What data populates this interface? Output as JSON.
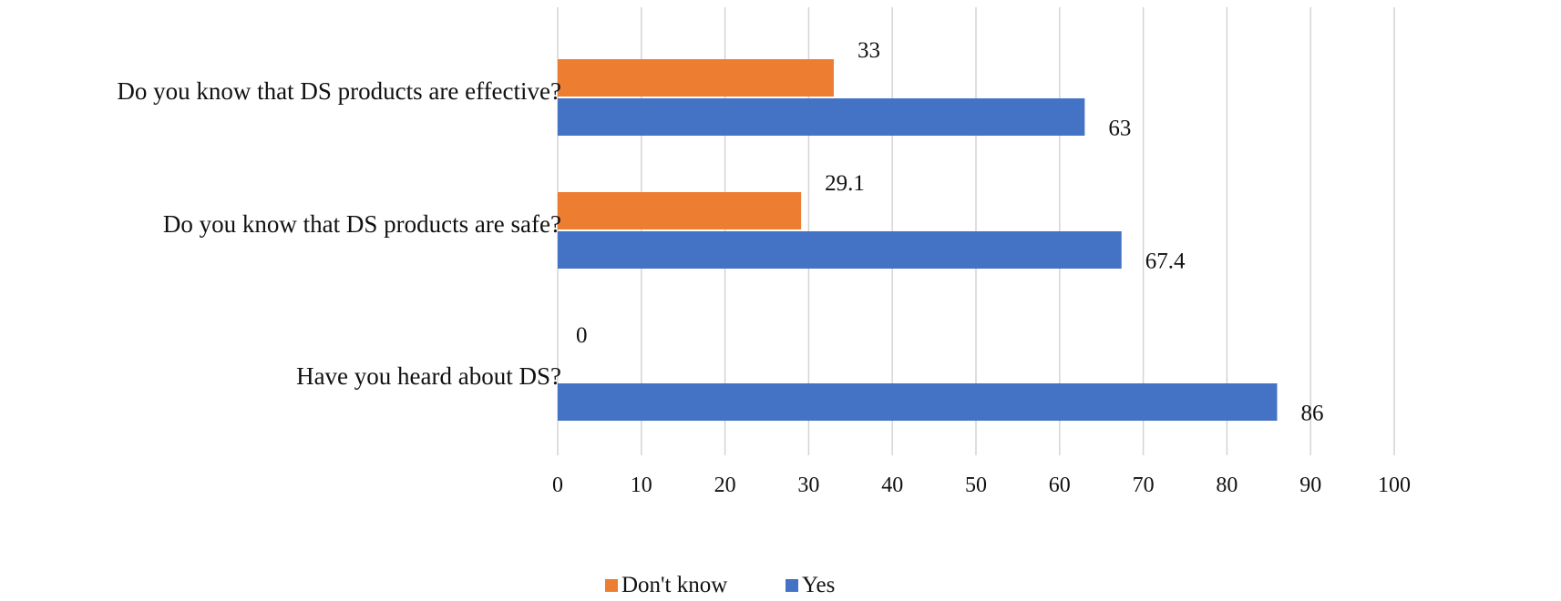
{
  "chart_data": {
    "type": "bar",
    "orientation": "horizontal",
    "categories": [
      "Do you know that DS products are effective?",
      "Do you know that DS products are safe?",
      "Have you heard about DS?"
    ],
    "series": [
      {
        "name": "Don't know",
        "color": "#ED7D31",
        "values": [
          33,
          29.1,
          0
        ]
      },
      {
        "name": "Yes",
        "color": "#4472C4",
        "values": [
          63,
          67.4,
          86
        ]
      }
    ],
    "data_labels": [
      [
        "33",
        "29.1",
        "0"
      ],
      [
        "63",
        "67.4",
        "86"
      ]
    ],
    "xlim": [
      0,
      100
    ],
    "xticks": [
      "0",
      "10",
      "20",
      "30",
      "40",
      "50",
      "60",
      "70",
      "80",
      "90",
      "100"
    ],
    "grid": true,
    "legend": "bottom-center"
  }
}
